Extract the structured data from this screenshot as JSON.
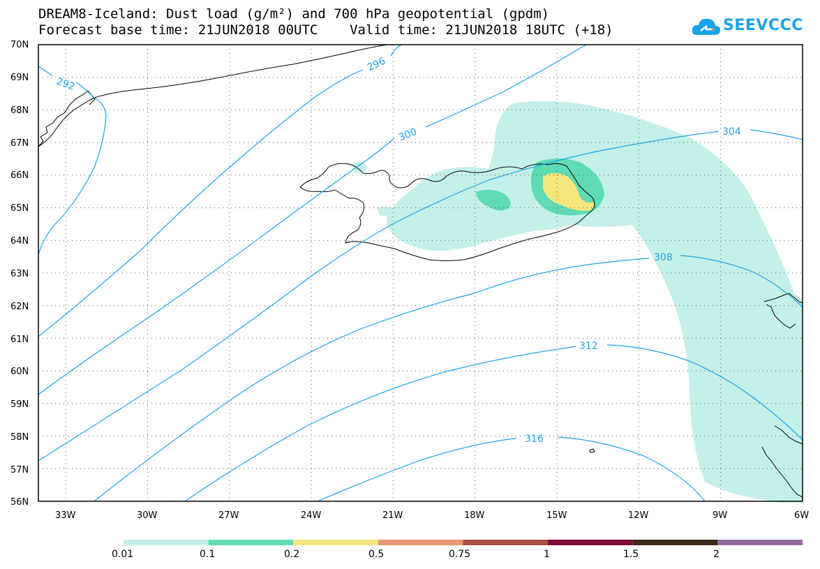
{
  "title": {
    "line1": "DREAM8-Iceland: Dust load (g/m²) and 700 hPa geopotential (gpdm)",
    "line2": "Forecast base time: 21JUN2018 00UTC    Valid time: 21JUN2018 18UTC (+18)"
  },
  "logo": {
    "text": "SEEVCCC",
    "icon": "cloud-icon"
  },
  "colors": {
    "contour": "#1aa2e8",
    "coastline": "#000000",
    "grid": "#555555"
  },
  "map": {
    "lon_range": [
      -34,
      -6
    ],
    "lat_range": [
      56,
      70
    ],
    "lat_ticks": [
      "70N",
      "69N",
      "68N",
      "67N",
      "66N",
      "65N",
      "64N",
      "63N",
      "62N",
      "61N",
      "60N",
      "59N",
      "58N",
      "57N",
      "56N"
    ],
    "lon_ticks": [
      "33W",
      "30W",
      "27W",
      "24W",
      "21W",
      "18W",
      "15W",
      "12W",
      "9W",
      "6W"
    ]
  },
  "contours": {
    "labels": [
      "292",
      "296",
      "300",
      "304",
      "308",
      "312",
      "316"
    ]
  },
  "colorbar": {
    "colors": [
      "#c4f0ea",
      "#5edbb4",
      "#f3e67c",
      "#e49a76",
      "#a94f45",
      "#7c0a35",
      "#3d2a18",
      "#956a9e"
    ],
    "labels": [
      "0.01",
      "0.1",
      "0.2",
      "0.5",
      "0.75",
      "1",
      "1.5",
      "2"
    ]
  }
}
